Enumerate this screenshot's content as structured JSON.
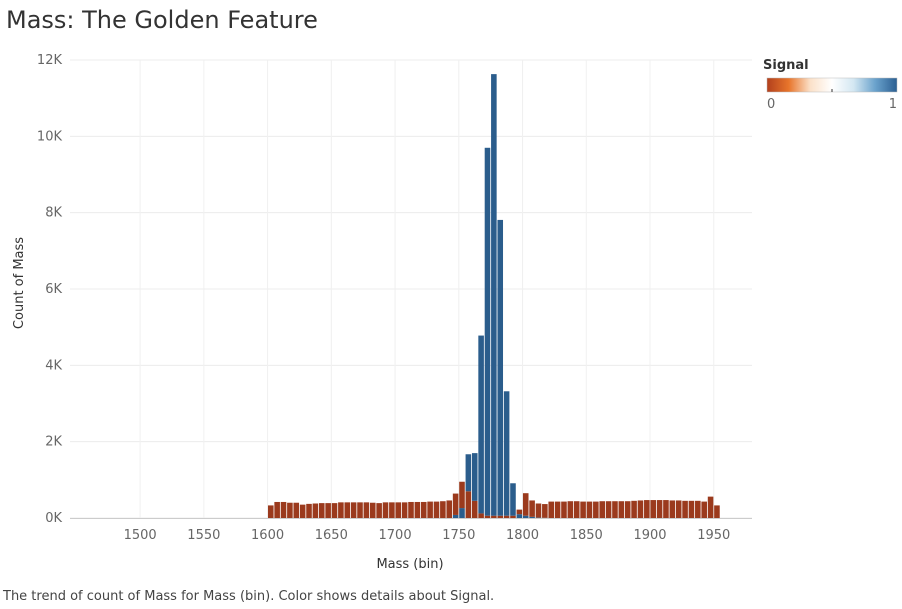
{
  "page": {
    "title": "Mass: The Golden Feature",
    "caption": "The trend of count of Mass for Mass (bin).  Color shows details about Signal."
  },
  "legend": {
    "title": "Signal",
    "min_label": "0",
    "max_label": "1",
    "colors": [
      "#b2401d",
      "#e8752b",
      "#fbe1c9",
      "#ffffff",
      "#d3e7f2",
      "#6aa2cc",
      "#2b5f92"
    ]
  },
  "chart_data": {
    "type": "bar",
    "stacked": true,
    "xlabel": "Mass (bin)",
    "ylabel": "Count of Mass",
    "xlim": [
      1445,
      1980
    ],
    "ylim": [
      0,
      12000
    ],
    "bin_width": 5,
    "x_ticks": [
      1500,
      1550,
      1600,
      1650,
      1700,
      1750,
      1800,
      1850,
      1900,
      1950
    ],
    "x_tick_labels": [
      "1500",
      "1550",
      "1600",
      "1650",
      "1700",
      "1750",
      "1800",
      "1850",
      "1900",
      "1950"
    ],
    "y_ticks": [
      0,
      2000,
      4000,
      6000,
      8000,
      10000,
      12000
    ],
    "y_tick_labels": [
      "0K",
      "2K",
      "4K",
      "6K",
      "8K",
      "10K",
      "12K"
    ],
    "grid": true,
    "series_colors": {
      "background": "#9b3a1d",
      "signal": "#2b5d8c"
    },
    "series": [
      {
        "name": "0",
        "x": [
          1600,
          1605,
          1610,
          1615,
          1620,
          1625,
          1630,
          1635,
          1640,
          1645,
          1650,
          1655,
          1660,
          1665,
          1670,
          1675,
          1680,
          1685,
          1690,
          1695,
          1700,
          1705,
          1710,
          1715,
          1720,
          1725,
          1730,
          1735,
          1740,
          1745,
          1750,
          1755,
          1760,
          1765,
          1770,
          1775,
          1780,
          1785,
          1790,
          1795,
          1800,
          1805,
          1810,
          1815,
          1820,
          1825,
          1830,
          1835,
          1840,
          1845,
          1850,
          1855,
          1860,
          1865,
          1870,
          1875,
          1880,
          1885,
          1890,
          1895,
          1900,
          1905,
          1910,
          1915,
          1920,
          1925,
          1930,
          1935,
          1940,
          1945,
          1950
        ],
        "values": [
          330,
          420,
          420,
          400,
          400,
          350,
          370,
          380,
          390,
          390,
          390,
          410,
          410,
          410,
          410,
          410,
          400,
          390,
          410,
          410,
          410,
          410,
          420,
          420,
          420,
          430,
          430,
          440,
          460,
          560,
          690,
          700,
          450,
          120,
          60,
          60,
          60,
          60,
          60,
          120,
          590,
          430,
          370,
          360,
          430,
          430,
          430,
          440,
          440,
          430,
          430,
          430,
          440,
          440,
          440,
          440,
          440,
          450,
          460,
          470,
          470,
          470,
          470,
          460,
          460,
          450,
          450,
          450,
          430,
          560,
          330
        ]
      },
      {
        "name": "1",
        "x": [
          1745,
          1750,
          1755,
          1760,
          1765,
          1770,
          1775,
          1780,
          1785,
          1790,
          1795,
          1800,
          1805,
          1810,
          1815
        ],
        "values": [
          80,
          260,
          970,
          1250,
          4660,
          9640,
          11570,
          7750,
          3260,
          850,
          100,
          60,
          30,
          10,
          5
        ]
      }
    ]
  }
}
